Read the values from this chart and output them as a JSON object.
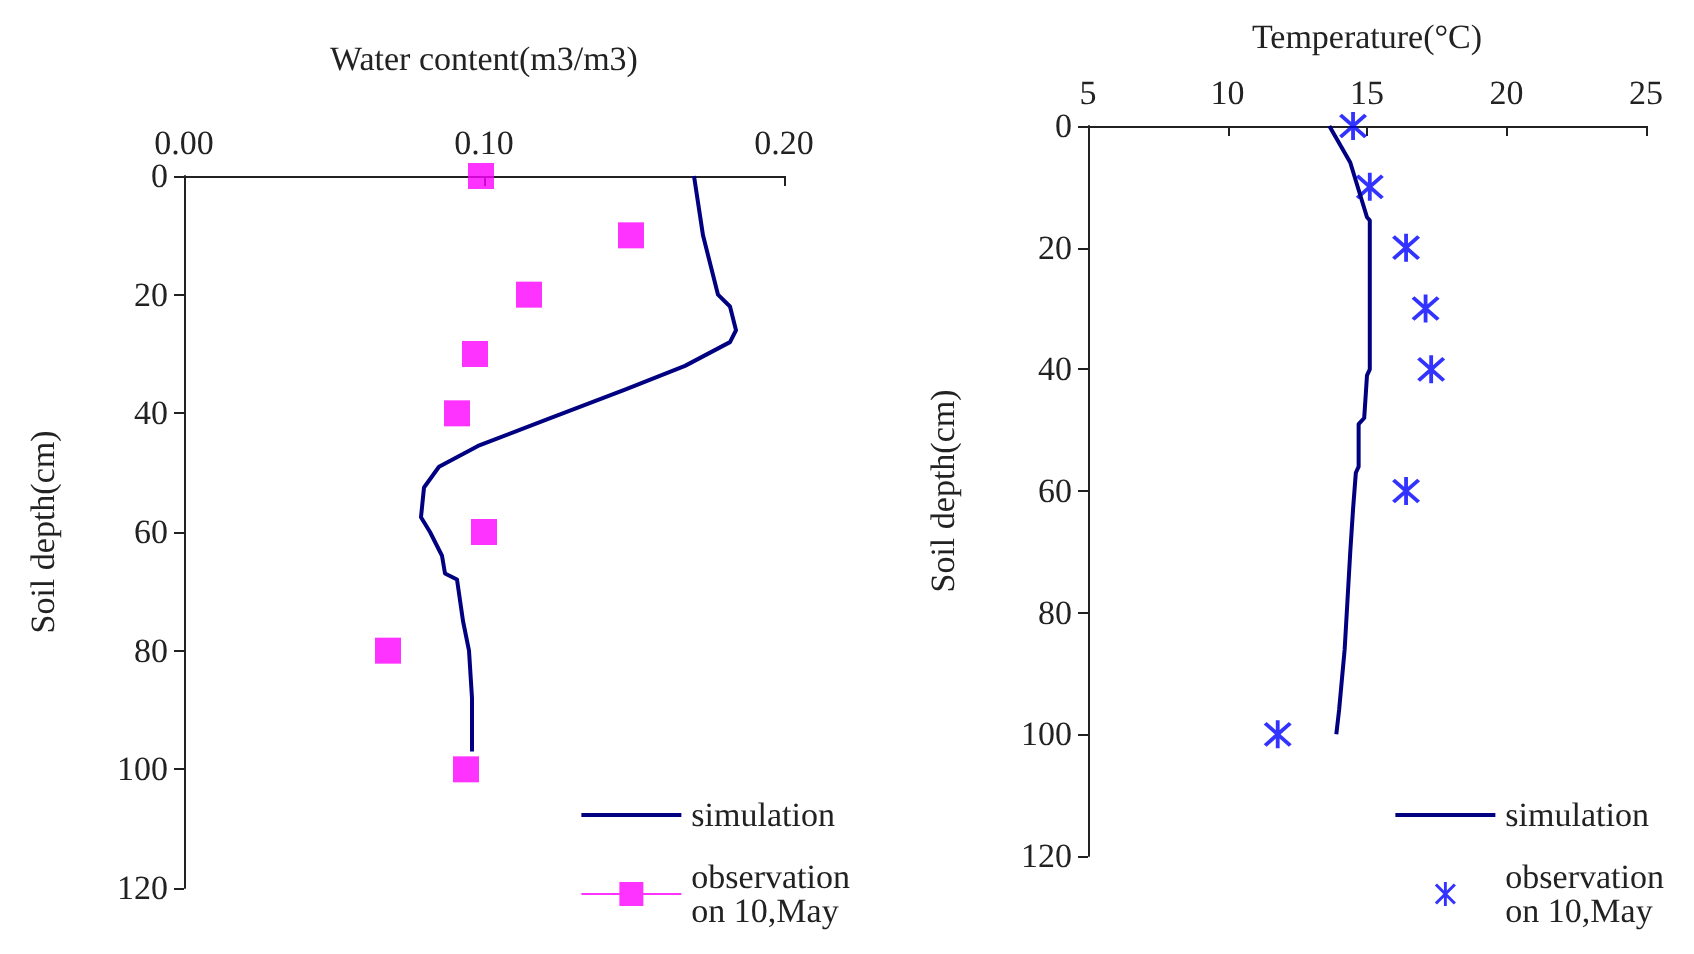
{
  "chart_data": [
    {
      "type": "line",
      "xlabel": "Water content(m3/m3)",
      "ylabel": "Soil depth(cm)",
      "xlim": [
        0,
        0.2
      ],
      "xticks": [
        {
          "value": 0,
          "label": "0.00"
        },
        {
          "value": 0.1,
          "label": "0.10"
        },
        {
          "value": 0.2,
          "label": "0.20"
        }
      ],
      "ylim": [
        120,
        0
      ],
      "yticks": [
        0,
        20,
        40,
        60,
        80,
        100,
        120
      ],
      "grid": false,
      "legend": "bottom right",
      "series": [
        {
          "name": "simulation",
          "color": "#000080",
          "marker": "none",
          "x": [
            0.17,
            0.173,
            0.178,
            0.182,
            0.184,
            0.182,
            0.167,
            0.147,
            0.121,
            0.098,
            0.085,
            0.08,
            0.079,
            0.082,
            0.086,
            0.087,
            0.091,
            0.093,
            0.095,
            0.096,
            0.096
          ],
          "values": [
            0,
            10,
            20,
            22,
            26,
            28,
            32,
            36,
            41,
            45.5,
            49,
            52.5,
            57.5,
            60,
            64,
            67,
            68,
            75,
            80,
            88,
            97
          ]
        },
        {
          "name": "observation\non 10,May",
          "type": "scatter",
          "color": "#ff00ff",
          "marker": "square",
          "x": [
            0.099,
            0.149,
            0.115,
            0.097,
            0.091,
            0.1,
            0.068,
            0.094
          ],
          "values": [
            0,
            10,
            20,
            30,
            40,
            60,
            80,
            100
          ]
        }
      ]
    },
    {
      "type": "line",
      "xlabel": "Temperature(°C)",
      "ylabel": "Soil depth(cm)",
      "xlim": [
        5,
        25
      ],
      "xticks": [
        5,
        10,
        15,
        20,
        25
      ],
      "ylim": [
        120,
        0
      ],
      "yticks": [
        0,
        20,
        40,
        60,
        80,
        100,
        120
      ],
      "grid": false,
      "legend": "bottom right",
      "series": [
        {
          "name": "simulation",
          "color": "#000080",
          "marker": "none",
          "x": [
            13.65,
            14.4,
            15.0,
            15.1,
            15.1,
            15.0,
            14.9,
            14.7,
            14.7,
            14.6,
            14.5,
            14.4,
            14.3,
            14.2,
            14.0,
            13.9
          ],
          "values": [
            0,
            6,
            15,
            15.5,
            40,
            41,
            48,
            49,
            56,
            57,
            63,
            70,
            78,
            86,
            96,
            100
          ]
        },
        {
          "name": "observation\non 10,May",
          "type": "scatter",
          "color": "#0000ff",
          "marker": "cross",
          "x": [
            14.5,
            15.1,
            16.4,
            17.1,
            17.3,
            16.4,
            11.8
          ],
          "values": [
            0,
            10,
            20,
            30,
            40,
            60,
            100
          ]
        }
      ]
    }
  ]
}
